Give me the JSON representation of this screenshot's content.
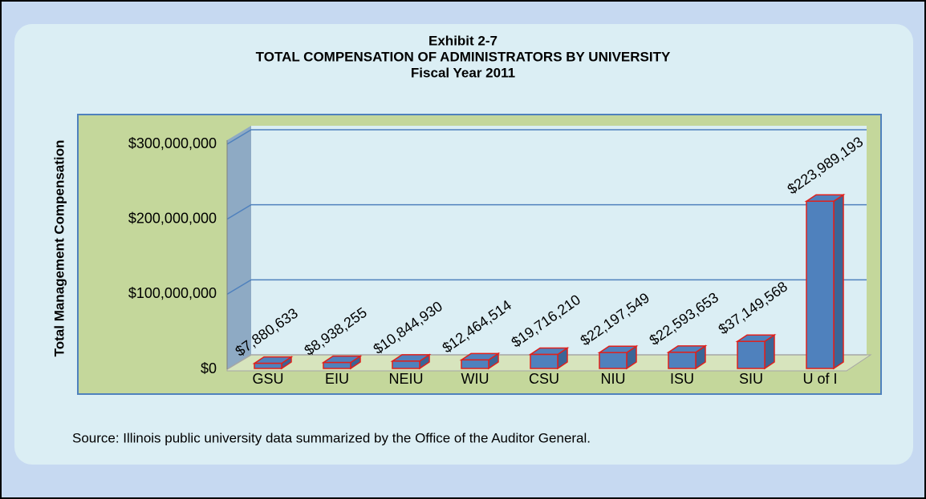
{
  "chart_data": {
    "type": "bar3d",
    "title_lines": [
      "Exhibit 2-7",
      "TOTAL COMPENSATION OF ADMINISTRATORS BY UNIVERSITY",
      "Fiscal Year 2011"
    ],
    "y_label": "Total Management Compensation",
    "source": "Source:  Illinois public university data summarized by the Office of the Auditor General.",
    "categories": [
      "GSU",
      "EIU",
      "NEIU",
      "WIU",
      "CSU",
      "NIU",
      "ISU",
      "SIU",
      "U of I"
    ],
    "values": [
      7880633,
      8938255,
      10844930,
      12464514,
      19716210,
      22197549,
      22593653,
      37149568,
      223989193
    ],
    "value_labels": [
      "$7,880,633",
      "$8,938,255",
      "$10,844,930",
      "$12,464,514",
      "$19,716,210",
      "$22,197,549",
      "$22,593,653",
      "$37,149,568",
      "$223,989,193"
    ],
    "color": "#4f81bd",
    "edge_color": "#e0201b",
    "ylim": [
      0,
      300000000
    ],
    "yticks": [
      {
        "value": 0,
        "label": "$0"
      },
      {
        "value": 100000000,
        "label": "$100,000,000"
      },
      {
        "value": 200000000,
        "label": "$200,000,000"
      },
      {
        "value": 300000000,
        "label": "$300,000,000"
      }
    ],
    "grid": true
  }
}
